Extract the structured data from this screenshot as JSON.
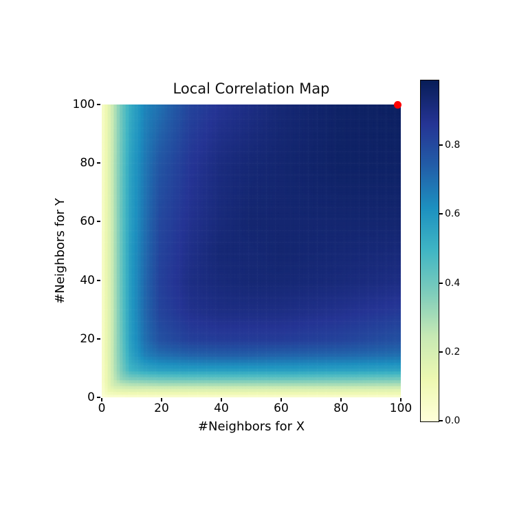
{
  "figure": {
    "background": "#ffffff"
  },
  "chart_data": {
    "type": "heatmap",
    "title": "Local Correlation Map",
    "xlabel": "#Neighbors for X",
    "ylabel": "#Neighbors for Y",
    "xlim": [
      0,
      100
    ],
    "ylim": [
      0,
      100
    ],
    "xticks": [
      0,
      20,
      40,
      60,
      80,
      100
    ],
    "yticks": [
      0,
      20,
      40,
      60,
      80,
      100
    ],
    "grid": "off",
    "legend": "none",
    "colormap": {
      "name": "YlGnBu",
      "stops": [
        {
          "p": 0.0,
          "color": "#ffffd9"
        },
        {
          "p": 0.125,
          "color": "#edf8b1"
        },
        {
          "p": 0.25,
          "color": "#c7e9b4"
        },
        {
          "p": 0.375,
          "color": "#7fcdbb"
        },
        {
          "p": 0.5,
          "color": "#41b6c4"
        },
        {
          "p": 0.625,
          "color": "#1d91c0"
        },
        {
          "p": 0.75,
          "color": "#225ea8"
        },
        {
          "p": 0.875,
          "color": "#253494"
        },
        {
          "p": 1.0,
          "color": "#081d58"
        }
      ]
    },
    "colorbar": {
      "position": "right",
      "vmin": 0.0,
      "vmax": 0.99,
      "tick_values": [
        0.0,
        0.2,
        0.4,
        0.6,
        0.8
      ],
      "tick_labels": [
        "0.0",
        "0.2",
        "0.4",
        "0.6",
        "0.8"
      ]
    },
    "heatmap": {
      "k_samples": [
        1,
        2,
        3,
        5,
        7,
        10,
        15,
        20,
        30,
        40,
        50,
        60,
        80,
        100
      ],
      "values": [
        [
          0.02,
          0.03,
          0.04,
          0.04,
          0.04,
          0.05,
          0.05,
          0.05,
          0.05,
          0.05,
          0.05,
          0.05,
          0.05,
          0.05
        ],
        [
          0.04,
          0.07,
          0.09,
          0.1,
          0.11,
          0.11,
          0.11,
          0.11,
          0.11,
          0.11,
          0.11,
          0.11,
          0.11,
          0.11
        ],
        [
          0.05,
          0.09,
          0.13,
          0.15,
          0.16,
          0.17,
          0.17,
          0.17,
          0.17,
          0.17,
          0.17,
          0.17,
          0.17,
          0.16
        ],
        [
          0.06,
          0.11,
          0.16,
          0.23,
          0.26,
          0.28,
          0.29,
          0.3,
          0.3,
          0.3,
          0.3,
          0.3,
          0.3,
          0.29
        ],
        [
          0.07,
          0.12,
          0.17,
          0.27,
          0.34,
          0.38,
          0.4,
          0.41,
          0.42,
          0.42,
          0.42,
          0.42,
          0.41,
          0.4
        ],
        [
          0.07,
          0.12,
          0.18,
          0.29,
          0.38,
          0.5,
          0.55,
          0.57,
          0.58,
          0.58,
          0.58,
          0.58,
          0.57,
          0.56
        ],
        [
          0.07,
          0.13,
          0.18,
          0.3,
          0.4,
          0.55,
          0.66,
          0.7,
          0.73,
          0.74,
          0.74,
          0.73,
          0.72,
          0.7
        ],
        [
          0.07,
          0.13,
          0.18,
          0.3,
          0.41,
          0.57,
          0.7,
          0.78,
          0.83,
          0.84,
          0.84,
          0.84,
          0.82,
          0.78
        ],
        [
          0.07,
          0.13,
          0.18,
          0.3,
          0.42,
          0.58,
          0.72,
          0.82,
          0.88,
          0.9,
          0.9,
          0.9,
          0.88,
          0.85
        ],
        [
          0.07,
          0.13,
          0.18,
          0.3,
          0.42,
          0.58,
          0.72,
          0.83,
          0.9,
          0.92,
          0.93,
          0.93,
          0.92,
          0.9
        ],
        [
          0.07,
          0.13,
          0.18,
          0.3,
          0.42,
          0.58,
          0.71,
          0.82,
          0.89,
          0.93,
          0.93,
          0.94,
          0.93,
          0.92
        ],
        [
          0.07,
          0.13,
          0.18,
          0.3,
          0.42,
          0.57,
          0.7,
          0.81,
          0.88,
          0.92,
          0.94,
          0.94,
          0.94,
          0.94
        ],
        [
          0.07,
          0.12,
          0.18,
          0.3,
          0.41,
          0.56,
          0.68,
          0.77,
          0.86,
          0.91,
          0.93,
          0.94,
          0.96,
          0.96
        ],
        [
          0.07,
          0.12,
          0.17,
          0.29,
          0.4,
          0.53,
          0.65,
          0.7,
          0.82,
          0.87,
          0.9,
          0.93,
          0.96,
          0.97
        ]
      ]
    },
    "max_marker": {
      "x": 99,
      "y": 100,
      "color": "#ff0000"
    }
  }
}
